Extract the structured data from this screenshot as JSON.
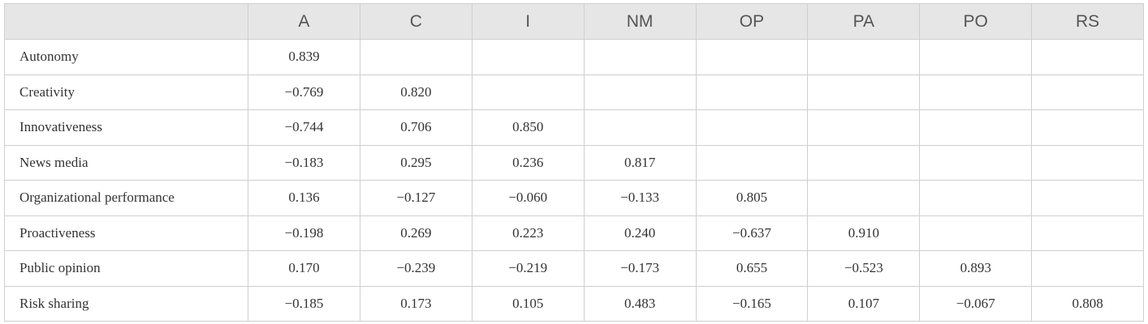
{
  "table": {
    "columns": [
      "A",
      "C",
      "I",
      "NM",
      "OP",
      "PA",
      "PO",
      "RS"
    ],
    "rows": [
      {
        "label": "Autonomy",
        "cells": [
          "0.839"
        ]
      },
      {
        "label": "Creativity",
        "cells": [
          "−0.769",
          "0.820"
        ]
      },
      {
        "label": "Innovativeness",
        "cells": [
          "−0.744",
          "0.706",
          "0.850"
        ]
      },
      {
        "label": "News media",
        "cells": [
          "−0.183",
          "0.295",
          "0.236",
          "0.817"
        ]
      },
      {
        "label": "Organizational performance",
        "cells": [
          "0.136",
          "−0.127",
          "−0.060",
          "−0.133",
          "0.805"
        ]
      },
      {
        "label": "Proactiveness",
        "cells": [
          "−0.198",
          "0.269",
          "0.223",
          "0.240",
          "−0.637",
          "0.910"
        ]
      },
      {
        "label": "Public opinion",
        "cells": [
          "0.170",
          "−0.239",
          "−0.219",
          "−0.173",
          "0.655",
          "−0.523",
          "0.893"
        ]
      },
      {
        "label": "Risk sharing",
        "cells": [
          "−0.185",
          "0.173",
          "0.105",
          "0.483",
          "−0.165",
          "0.107",
          "−0.067",
          "0.808"
        ]
      }
    ]
  }
}
